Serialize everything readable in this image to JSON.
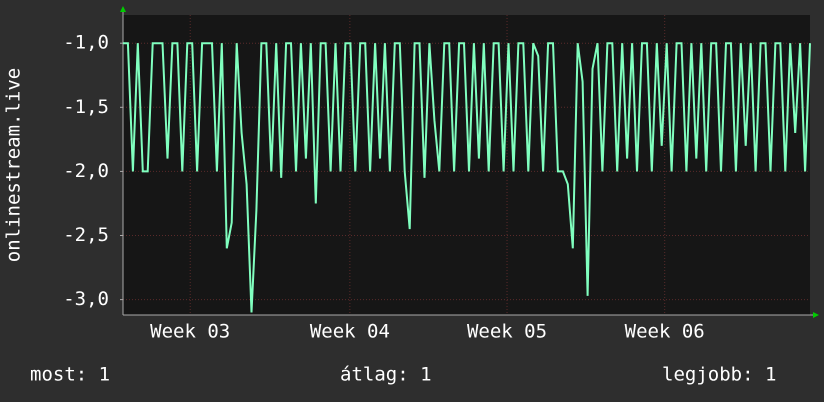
{
  "chart_data": {
    "type": "line",
    "y_label": "onlinestream.live",
    "values": [
      -1,
      -1,
      -2,
      -1,
      -2,
      -2,
      -1,
      -1,
      -1,
      -1.9,
      -1,
      -1,
      -2,
      -1,
      -1,
      -2,
      -1,
      -1,
      -1,
      -2,
      -1,
      -2.6,
      -2.4,
      -1,
      -1.7,
      -2.1,
      -3.1,
      -2.3,
      -1,
      -1,
      -2,
      -1,
      -2.05,
      -1,
      -1,
      -2,
      -1,
      -1.9,
      -1,
      -2.25,
      -1,
      -1,
      -2,
      -1,
      -2,
      -1,
      -1,
      -2,
      -1,
      -1,
      -2,
      -1,
      -1.9,
      -1,
      -2,
      -1,
      -1,
      -2,
      -2.45,
      -1,
      -1,
      -2.05,
      -1,
      -1.6,
      -2,
      -1,
      -1,
      -2,
      -1,
      -1,
      -2,
      -1,
      -1.9,
      -1,
      -2,
      -1,
      -1,
      -2,
      -1,
      -2,
      -1,
      -1,
      -2,
      -1,
      -1.1,
      -2,
      -1,
      -1,
      -2,
      -2,
      -2.1,
      -2.6,
      -1,
      -1.3,
      -2.97,
      -1.2,
      -1,
      -2,
      -1,
      -1,
      -2,
      -1,
      -1.9,
      -1,
      -2,
      -1,
      -1,
      -2,
      -1,
      -1.8,
      -1,
      -2,
      -1,
      -1,
      -2,
      -1,
      -1.9,
      -1,
      -2,
      -1,
      -1,
      -2,
      -1,
      -1,
      -2,
      -1,
      -1.8,
      -1,
      -2,
      -1,
      -1,
      -2,
      -1,
      -1,
      -2,
      -1,
      -1.7,
      -1,
      -2,
      -1
    ],
    "color": "#80ffbf",
    "xlim": [
      0,
      139
    ],
    "xticks": [
      {
        "value": 13.6,
        "label": "Week 03"
      },
      {
        "value": 45.9,
        "label": "Week 04"
      },
      {
        "value": 77.7,
        "label": "Week 05"
      },
      {
        "value": 109.6,
        "label": "Week 06"
      }
    ],
    "ylim": [
      -3.12,
      -0.78
    ],
    "yticks": [
      {
        "value": -1,
        "label": "-1,0"
      },
      {
        "value": -1.5,
        "label": "-1,5"
      },
      {
        "value": -2,
        "label": "-2,0"
      },
      {
        "value": -2.5,
        "label": "-2,5"
      },
      {
        "value": -3,
        "label": "-3,0"
      }
    ],
    "grid": true,
    "footer": [
      "most: 1",
      "átlag: 1",
      "legjobb: 1"
    ]
  }
}
